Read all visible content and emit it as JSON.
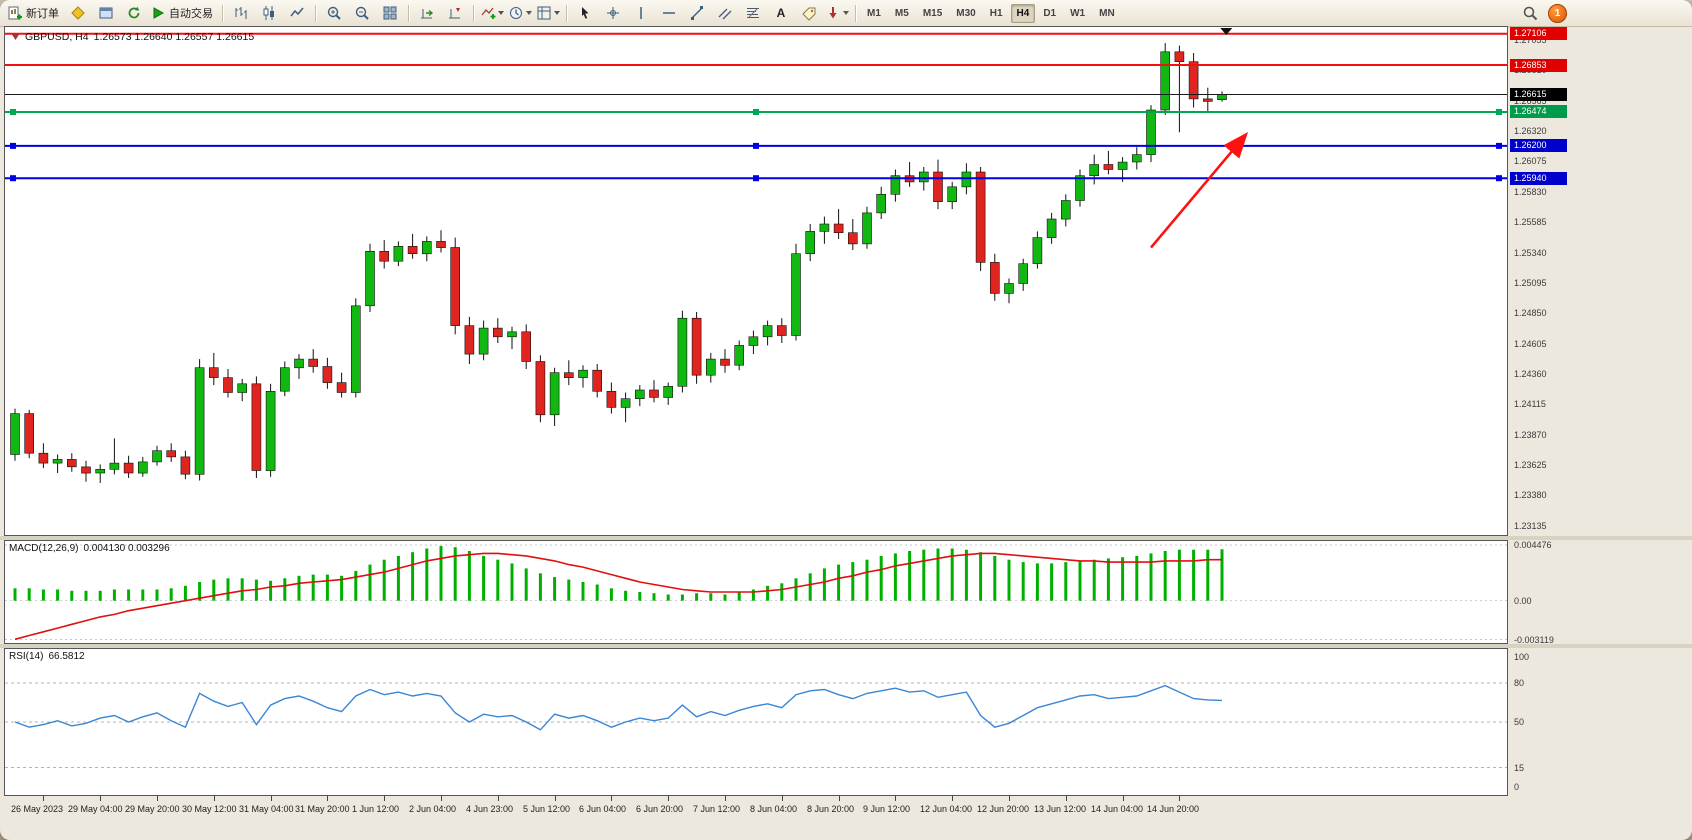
{
  "toolbar": {
    "new_order_label": "新订单",
    "autotrade_label": "自动交易",
    "text_tool_label": "A",
    "timeframes": [
      "M1",
      "M5",
      "M15",
      "M30",
      "H1",
      "H4",
      "D1",
      "W1",
      "MN"
    ],
    "active_timeframe": "H4",
    "notification_count": "1"
  },
  "chart_header": {
    "symbol": "GBPUSD, H4",
    "ohlc": "1.26573 1.26640 1.26557 1.26615"
  },
  "chart_data": {
    "type": "candlestick",
    "symbol": "GBPUSD",
    "timeframe": "H4",
    "price_axis": {
      "min": 1.2306,
      "max": 1.2716,
      "ticks": [
        "1.27055",
        "1.26810",
        "1.26565",
        "1.26320",
        "1.26075",
        "1.25830",
        "1.25585",
        "1.25340",
        "1.25095",
        "1.24850",
        "1.24605",
        "1.24360",
        "1.24115",
        "1.23870",
        "1.23625",
        "1.23380",
        "1.23135"
      ]
    },
    "time_labels": [
      "26 May 2023",
      "29 May 04:00",
      "29 May 20:00",
      "30 May 12:00",
      "31 May 04:00",
      "31 May 20:00",
      "1 Jun 12:00",
      "2 Jun 04:00",
      "4 Jun 23:00",
      "5 Jun 12:00",
      "6 Jun 04:00",
      "6 Jun 20:00",
      "7 Jun 12:00",
      "8 Jun 04:00",
      "8 Jun 20:00",
      "9 Jun 12:00",
      "12 Jun 04:00",
      "12 Jun 20:00",
      "13 Jun 12:00",
      "14 Jun 04:00",
      "14 Jun 20:00"
    ],
    "time_label_start_index": 2,
    "time_label_step": 4,
    "levels": [
      {
        "label": "1.27106",
        "price": 1.27106,
        "color": "#f01010",
        "tag_color": "#e00000",
        "width": 2,
        "handles": false
      },
      {
        "label": "1.26853",
        "price": 1.26853,
        "color": "#f01010",
        "tag_color": "#e00000",
        "width": 2,
        "handles": false
      },
      {
        "label": "1.26615",
        "price": 1.26615,
        "color": "#1a1a1a",
        "tag_color": "#000000",
        "width": 1,
        "handles": false,
        "role": "current-price"
      },
      {
        "label": "1.26474",
        "price": 1.26474,
        "color": "#00a651",
        "tag_color": "#009a4b",
        "width": 2,
        "handles": true
      },
      {
        "label": "1.26200",
        "price": 1.262,
        "color": "#0000e6",
        "tag_color": "#0000cc",
        "width": 2,
        "handles": true
      },
      {
        "label": "1.25940",
        "price": 1.2594,
        "color": "#0000e6",
        "tag_color": "#0000cc",
        "width": 2,
        "handles": true
      }
    ],
    "arrow": {
      "x1_index": 80,
      "y1_price": 1.2538,
      "x2_index": 86.6,
      "y2_price": 1.2628,
      "color": "#ff1111"
    },
    "scroll_marker_index": 85.3,
    "colors": {
      "up": "#12b812",
      "down": "#e02420",
      "wick": "#111111"
    },
    "candles": [
      [
        1.2371,
        1.2408,
        1.2366,
        1.2404
      ],
      [
        1.2404,
        1.2407,
        1.2368,
        1.2372
      ],
      [
        1.2372,
        1.238,
        1.236,
        1.2364
      ],
      [
        1.2364,
        1.2371,
        1.2356,
        1.2367
      ],
      [
        1.2367,
        1.2372,
        1.2357,
        1.2361
      ],
      [
        1.2361,
        1.2366,
        1.2349,
        1.2356
      ],
      [
        1.2356,
        1.2363,
        1.2348,
        1.2359
      ],
      [
        1.2359,
        1.2384,
        1.2355,
        1.2364
      ],
      [
        1.2364,
        1.237,
        1.2352,
        1.2356
      ],
      [
        1.2356,
        1.2369,
        1.2353,
        1.2365
      ],
      [
        1.2365,
        1.2378,
        1.2362,
        1.2374
      ],
      [
        1.2374,
        1.238,
        1.2365,
        1.2369
      ],
      [
        1.2369,
        1.2374,
        1.2351,
        1.2355
      ],
      [
        1.2355,
        1.2448,
        1.235,
        1.2441
      ],
      [
        1.2441,
        1.2453,
        1.2427,
        1.2433
      ],
      [
        1.2433,
        1.244,
        1.2417,
        1.2421
      ],
      [
        1.2421,
        1.2432,
        1.2414,
        1.2428
      ],
      [
        1.2428,
        1.2434,
        1.2352,
        1.2358
      ],
      [
        1.2358,
        1.2428,
        1.2353,
        1.2422
      ],
      [
        1.2422,
        1.2446,
        1.2418,
        1.2441
      ],
      [
        1.2441,
        1.2452,
        1.2432,
        1.2448
      ],
      [
        1.2448,
        1.2456,
        1.2437,
        1.2442
      ],
      [
        1.2442,
        1.2449,
        1.2424,
        1.2429
      ],
      [
        1.2429,
        1.2437,
        1.2417,
        1.2421
      ],
      [
        1.2421,
        1.2497,
        1.2417,
        1.2491
      ],
      [
        1.2491,
        1.2541,
        1.2486,
        1.2535
      ],
      [
        1.2535,
        1.2544,
        1.2521,
        1.2527
      ],
      [
        1.2527,
        1.2543,
        1.2523,
        1.2539
      ],
      [
        1.2539,
        1.2549,
        1.2529,
        1.2533
      ],
      [
        1.2533,
        1.2547,
        1.2527,
        1.2543
      ],
      [
        1.2543,
        1.2552,
        1.2534,
        1.2538
      ],
      [
        1.2538,
        1.2546,
        1.2468,
        1.2475
      ],
      [
        1.2475,
        1.2482,
        1.2444,
        1.2452
      ],
      [
        1.2452,
        1.2479,
        1.2447,
        1.2473
      ],
      [
        1.2473,
        1.2481,
        1.2461,
        1.2466
      ],
      [
        1.2466,
        1.2474,
        1.2456,
        1.247
      ],
      [
        1.247,
        1.2476,
        1.244,
        1.2446
      ],
      [
        1.2446,
        1.2451,
        1.2397,
        1.2403
      ],
      [
        1.2403,
        1.2441,
        1.2394,
        1.2437
      ],
      [
        1.2437,
        1.2447,
        1.2427,
        1.2433
      ],
      [
        1.2433,
        1.2443,
        1.2425,
        1.2439
      ],
      [
        1.2439,
        1.2444,
        1.2417,
        1.2422
      ],
      [
        1.2422,
        1.2429,
        1.2404,
        1.2409
      ],
      [
        1.2409,
        1.2421,
        1.2397,
        1.2416
      ],
      [
        1.2416,
        1.2427,
        1.241,
        1.2423
      ],
      [
        1.2423,
        1.2431,
        1.2413,
        1.2417
      ],
      [
        1.2417,
        1.2429,
        1.2411,
        1.2426
      ],
      [
        1.2426,
        1.2487,
        1.2421,
        1.2481
      ],
      [
        1.2481,
        1.2486,
        1.2428,
        1.2435
      ],
      [
        1.2435,
        1.2453,
        1.2429,
        1.2448
      ],
      [
        1.2448,
        1.2456,
        1.2437,
        1.2443
      ],
      [
        1.2443,
        1.2463,
        1.2439,
        1.2459
      ],
      [
        1.2459,
        1.2471,
        1.2452,
        1.2466
      ],
      [
        1.2466,
        1.2479,
        1.2459,
        1.2475
      ],
      [
        1.2475,
        1.2481,
        1.2461,
        1.2467
      ],
      [
        1.2467,
        1.2541,
        1.2463,
        1.2533
      ],
      [
        1.2533,
        1.2557,
        1.2527,
        1.2551
      ],
      [
        1.2551,
        1.2563,
        1.2541,
        1.2557
      ],
      [
        1.2557,
        1.2569,
        1.2545,
        1.255
      ],
      [
        1.255,
        1.2561,
        1.2536,
        1.2541
      ],
      [
        1.2541,
        1.2571,
        1.2537,
        1.2566
      ],
      [
        1.2566,
        1.2587,
        1.2561,
        1.2581
      ],
      [
        1.2581,
        1.2601,
        1.2575,
        1.2596
      ],
      [
        1.2596,
        1.2607,
        1.2587,
        1.2591
      ],
      [
        1.2591,
        1.2603,
        1.2584,
        1.2599
      ],
      [
        1.2599,
        1.2609,
        1.2569,
        1.2575
      ],
      [
        1.2575,
        1.2591,
        1.2569,
        1.2587
      ],
      [
        1.2587,
        1.2606,
        1.2581,
        1.2599
      ],
      [
        1.2599,
        1.2603,
        1.2519,
        1.2526
      ],
      [
        1.2526,
        1.2533,
        1.2495,
        1.2501
      ],
      [
        1.2501,
        1.2513,
        1.2493,
        1.2509
      ],
      [
        1.2509,
        1.2529,
        1.2503,
        1.2525
      ],
      [
        1.2525,
        1.2551,
        1.2521,
        1.2546
      ],
      [
        1.2546,
        1.2566,
        1.2541,
        1.2561
      ],
      [
        1.2561,
        1.2581,
        1.2555,
        1.2576
      ],
      [
        1.2576,
        1.2601,
        1.2571,
        1.2596
      ],
      [
        1.2596,
        1.2613,
        1.2589,
        1.2605
      ],
      [
        1.2605,
        1.2616,
        1.2597,
        1.2601
      ],
      [
        1.2601,
        1.2611,
        1.2591,
        1.2607
      ],
      [
        1.2607,
        1.2619,
        1.2601,
        1.2613
      ],
      [
        1.2613,
        1.2653,
        1.2607,
        1.2649
      ],
      [
        1.2649,
        1.2703,
        1.2645,
        1.2696
      ],
      [
        1.2696,
        1.2701,
        1.2631,
        1.2688
      ],
      [
        1.2688,
        1.2695,
        1.2651,
        1.2658
      ],
      [
        1.2658,
        1.2667,
        1.2648,
        1.2656
      ],
      [
        1.26573,
        1.2664,
        1.26557,
        1.26615
      ]
    ]
  },
  "macd": {
    "name": "MACD(12,26,9)",
    "values": "0.004130 0.003296",
    "axis_labels": [
      {
        "text": "0.004476",
        "value": 0.004476
      },
      {
        "text": "0.00",
        "value": 0
      },
      {
        "text": "-0.003119",
        "value": -0.003119
      }
    ],
    "scale": {
      "min": -0.0034,
      "max": 0.0048
    },
    "colors": {
      "histogram": "#00b000",
      "signal": "#e01010"
    },
    "histogram": [
      0.001,
      0.001,
      0.0009,
      0.0009,
      0.0008,
      0.0008,
      0.0008,
      0.0009,
      0.0009,
      0.0009,
      0.0009,
      0.001,
      0.0012,
      0.0015,
      0.0017,
      0.0018,
      0.0018,
      0.0017,
      0.0016,
      0.0018,
      0.002,
      0.0021,
      0.0021,
      0.002,
      0.0024,
      0.0029,
      0.0033,
      0.0036,
      0.0039,
      0.0042,
      0.0044,
      0.0043,
      0.004,
      0.0036,
      0.0033,
      0.003,
      0.0026,
      0.0022,
      0.0019,
      0.0017,
      0.0015,
      0.0013,
      0.001,
      0.0008,
      0.0007,
      0.0006,
      0.0005,
      0.0005,
      0.0006,
      0.0006,
      0.0005,
      0.0007,
      0.0009,
      0.0012,
      0.0014,
      0.0018,
      0.0022,
      0.0026,
      0.0029,
      0.0031,
      0.0033,
      0.0036,
      0.0038,
      0.004,
      0.0041,
      0.0042,
      0.0042,
      0.0041,
      0.0039,
      0.0036,
      0.0033,
      0.0031,
      0.003,
      0.003,
      0.0031,
      0.0032,
      0.0033,
      0.0034,
      0.0035,
      0.0036,
      0.0038,
      0.004,
      0.0041,
      0.0041,
      0.0041,
      0.00413
    ],
    "signal": [
      -0.0031,
      -0.0028,
      -0.0025,
      -0.0022,
      -0.0019,
      -0.0016,
      -0.0013,
      -0.0011,
      -0.0008,
      -0.0006,
      -0.0004,
      -0.0002,
      0.0,
      0.0002,
      0.0004,
      0.0006,
      0.0008,
      0.0009,
      0.0011,
      0.0012,
      0.0014,
      0.0015,
      0.0016,
      0.0017,
      0.0019,
      0.0021,
      0.0023,
      0.0026,
      0.0029,
      0.0032,
      0.0034,
      0.0036,
      0.0037,
      0.0038,
      0.0038,
      0.0037,
      0.0036,
      0.0034,
      0.0032,
      0.0029,
      0.0027,
      0.0024,
      0.0021,
      0.0018,
      0.0015,
      0.0013,
      0.0011,
      0.0009,
      0.0008,
      0.0007,
      0.0007,
      0.0007,
      0.0007,
      0.0008,
      0.0009,
      0.0011,
      0.0013,
      0.0015,
      0.0018,
      0.002,
      0.0023,
      0.0025,
      0.0028,
      0.003,
      0.0032,
      0.0034,
      0.0036,
      0.0037,
      0.0038,
      0.0038,
      0.0037,
      0.0036,
      0.0035,
      0.0034,
      0.0033,
      0.0032,
      0.0032,
      0.0031,
      0.0031,
      0.0031,
      0.0031,
      0.0032,
      0.0032,
      0.0032,
      0.0033,
      0.003296
    ]
  },
  "rsi": {
    "name": "RSI(14)",
    "value": "66.5812",
    "axis_labels": [
      {
        "text": "100",
        "value": 100
      },
      {
        "text": "80",
        "value": 80
      },
      {
        "text": "50",
        "value": 50
      },
      {
        "text": "15",
        "value": 15
      },
      {
        "text": "0",
        "value": 0
      }
    ],
    "levels": [
      80,
      50,
      15
    ],
    "color": "#3a86d6",
    "series": [
      50,
      46,
      48,
      51,
      47,
      49,
      53,
      55,
      50,
      54,
      57,
      51,
      46,
      72,
      66,
      62,
      65,
      48,
      63,
      68,
      70,
      66,
      61,
      58,
      70,
      75,
      71,
      73,
      70,
      72,
      70,
      57,
      50,
      56,
      54,
      55,
      50,
      44,
      56,
      53,
      55,
      51,
      46,
      50,
      53,
      51,
      53,
      63,
      54,
      58,
      55,
      59,
      62,
      64,
      61,
      71,
      74,
      75,
      71,
      68,
      72,
      74,
      76,
      73,
      74,
      69,
      71,
      73,
      55,
      46,
      49,
      55,
      61,
      64,
      67,
      70,
      71,
      68,
      69,
      70,
      74,
      78,
      73,
      68,
      67,
      66.6
    ]
  }
}
